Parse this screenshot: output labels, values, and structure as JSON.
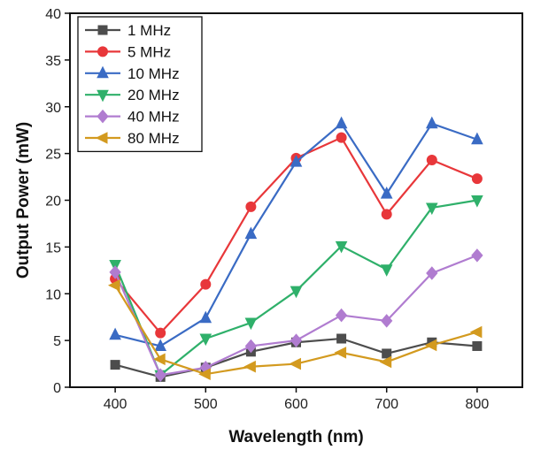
{
  "chart_data": {
    "type": "line",
    "xlabel": "Wavelength (nm)",
    "ylabel": "Output Power (mW)",
    "xlim": [
      350,
      850
    ],
    "ylim": [
      0,
      40
    ],
    "xticks": [
      400,
      500,
      600,
      700,
      800
    ],
    "yticks": [
      0,
      5,
      10,
      15,
      20,
      25,
      30,
      35,
      40
    ],
    "grid": false,
    "legend_position": "top-left",
    "x": [
      400,
      450,
      500,
      550,
      600,
      650,
      700,
      750,
      800
    ],
    "series": [
      {
        "name": "1 MHz",
        "color": "#4d4d4d",
        "marker": "square",
        "values": [
          2.4,
          1.1,
          2.1,
          3.8,
          4.8,
          5.2,
          3.6,
          4.8,
          4.4
        ]
      },
      {
        "name": "5 MHz",
        "color": "#e8373a",
        "marker": "circle",
        "values": [
          11.6,
          5.8,
          11.0,
          19.3,
          24.5,
          26.7,
          18.5,
          24.3,
          22.3
        ]
      },
      {
        "name": "10 MHz",
        "color": "#3a6bc4",
        "marker": "triangle-up",
        "values": [
          5.6,
          4.4,
          7.4,
          16.4,
          24.1,
          28.2,
          20.7,
          28.2,
          26.5
        ]
      },
      {
        "name": "20 MHz",
        "color": "#2fb06a",
        "marker": "triangle-down",
        "values": [
          13.1,
          1.3,
          5.2,
          6.9,
          10.3,
          15.1,
          12.6,
          19.2,
          20.0
        ]
      },
      {
        "name": "40 MHz",
        "color": "#b07cd0",
        "marker": "diamond",
        "values": [
          12.3,
          1.3,
          2.1,
          4.4,
          5.0,
          7.7,
          7.1,
          12.2,
          14.1
        ]
      },
      {
        "name": "80 MHz",
        "color": "#d39a1f",
        "marker": "triangle-left",
        "values": [
          10.9,
          3.0,
          1.4,
          2.2,
          2.5,
          3.7,
          2.7,
          4.5,
          5.9
        ]
      }
    ]
  }
}
